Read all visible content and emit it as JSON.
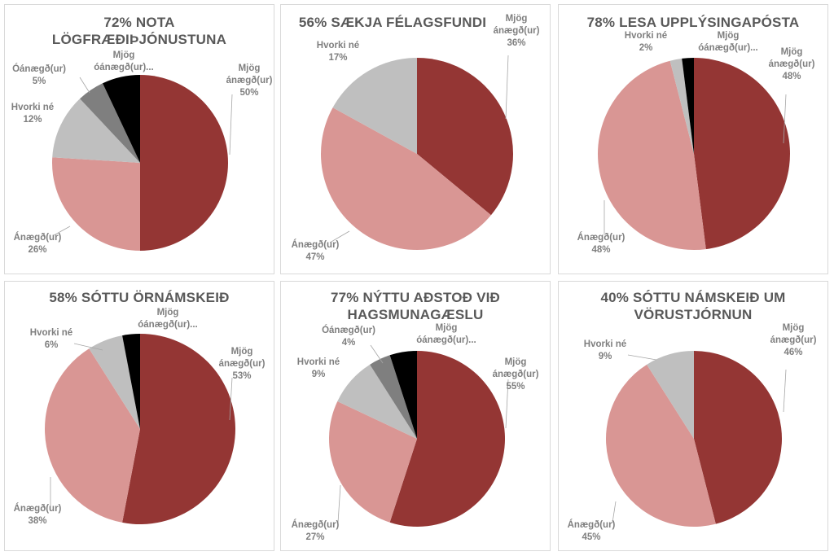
{
  "colors": {
    "mjog_anaegd": "#943634",
    "anaegd": "#d99694",
    "hvorki_ne": "#bfbfbf",
    "oanaegd": "#7f7f7f",
    "mjog_oanaegd": "#000000",
    "title": "#595959",
    "label": "#7f7f7f"
  },
  "chart_data": [
    {
      "type": "pie",
      "title": "72% NOTA LÖGFRÆÐIÞJÓNUSTUNA",
      "title_lines": [
        "72% NOTA",
        "LÖGFRÆÐIÞJÓNUSTUNA"
      ],
      "slices": [
        {
          "label": "Mjög ánægð(ur)",
          "label_lines": [
            "Mjög",
            "ánægð(ur)"
          ],
          "value": 50,
          "value_label": "50%",
          "color_key": "mjog_anaegd"
        },
        {
          "label": "Ánægð(ur)",
          "label_lines": [
            "Ánægð(ur)"
          ],
          "value": 26,
          "value_label": "26%",
          "color_key": "anaegd"
        },
        {
          "label": "Hvorki né",
          "label_lines": [
            "Hvorki né"
          ],
          "value": 12,
          "value_label": "12%",
          "color_key": "hvorki_ne"
        },
        {
          "label": "Óánægð(ur)",
          "label_lines": [
            "Óánægð(ur)"
          ],
          "value": 5,
          "value_label": "5%",
          "color_key": "oanaegd"
        },
        {
          "label": "Mjög óánægð(ur)...",
          "label_lines": [
            "Mjög",
            "óánægð(ur)..."
          ],
          "value": 7,
          "value_label": "",
          "color_key": "mjog_oanaegd"
        }
      ]
    },
    {
      "type": "pie",
      "title": "56% SÆKJA FÉLAGSFUNDI",
      "title_lines": [
        "56% SÆKJA FÉLAGSFUNDI"
      ],
      "slices": [
        {
          "label": "Mjög ánægð(ur)",
          "label_lines": [
            "Mjög",
            "ánægð(ur)"
          ],
          "value": 36,
          "value_label": "36%",
          "color_key": "mjog_anaegd"
        },
        {
          "label": "Ánægð(ur)",
          "label_lines": [
            "Ánægð(ur)"
          ],
          "value": 47,
          "value_label": "47%",
          "color_key": "anaegd"
        },
        {
          "label": "Hvorki né",
          "label_lines": [
            "Hvorki né"
          ],
          "value": 17,
          "value_label": "17%",
          "color_key": "hvorki_ne"
        }
      ]
    },
    {
      "type": "pie",
      "title": "78% LESA UPPLÝSINGAPÓSTA",
      "title_lines": [
        "78% LESA UPPLÝSINGAPÓSTA"
      ],
      "slices": [
        {
          "label": "Mjög ánægð(ur)",
          "label_lines": [
            "Mjög",
            "ánægð(ur)"
          ],
          "value": 48,
          "value_label": "48%",
          "color_key": "mjog_anaegd"
        },
        {
          "label": "Ánægð(ur)",
          "label_lines": [
            "Ánægð(ur)"
          ],
          "value": 48,
          "value_label": "48%",
          "color_key": "anaegd"
        },
        {
          "label": "Hvorki né",
          "label_lines": [
            "Hvorki né"
          ],
          "value": 2,
          "value_label": "2%",
          "color_key": "hvorki_ne"
        },
        {
          "label": "Mjög óánægð(ur)...",
          "label_lines": [
            "Mjög",
            "óánægð(ur)..."
          ],
          "value": 2,
          "value_label": "",
          "color_key": "mjog_oanaegd"
        }
      ]
    },
    {
      "type": "pie",
      "title": "58% SÓTTU ÖRNÁMSKEIÐ",
      "title_lines": [
        "58% SÓTTU ÖRNÁMSKEIÐ"
      ],
      "slices": [
        {
          "label": "Mjög ánægð(ur)",
          "label_lines": [
            "Mjög",
            "ánægð(ur)"
          ],
          "value": 53,
          "value_label": "53%",
          "color_key": "mjog_anaegd"
        },
        {
          "label": "Ánægð(ur)",
          "label_lines": [
            "Ánægð(ur)"
          ],
          "value": 38,
          "value_label": "38%",
          "color_key": "anaegd"
        },
        {
          "label": "Hvorki né",
          "label_lines": [
            "Hvorki né"
          ],
          "value": 6,
          "value_label": "6%",
          "color_key": "hvorki_ne"
        },
        {
          "label": "Mjög óánægð(ur)...",
          "label_lines": [
            "Mjög",
            "óánægð(ur)..."
          ],
          "value": 3,
          "value_label": "",
          "color_key": "mjog_oanaegd"
        }
      ]
    },
    {
      "type": "pie",
      "title": "77% NÝTTU AÐSTOÐ VIÐ HAGSMUNAGÆSLU",
      "title_lines": [
        "77% NÝTTU AÐSTOÐ VIÐ",
        "HAGSMUNAGÆSLU"
      ],
      "slices": [
        {
          "label": "Mjög ánægð(ur)",
          "label_lines": [
            "Mjög",
            "ánægð(ur)"
          ],
          "value": 55,
          "value_label": "55%",
          "color_key": "mjog_anaegd"
        },
        {
          "label": "Ánægð(ur)",
          "label_lines": [
            "Ánægð(ur)"
          ],
          "value": 27,
          "value_label": "27%",
          "color_key": "anaegd"
        },
        {
          "label": "Hvorki né",
          "label_lines": [
            "Hvorki né"
          ],
          "value": 9,
          "value_label": "9%",
          "color_key": "hvorki_ne"
        },
        {
          "label": "Óánægð(ur)",
          "label_lines": [
            "Óánægð(ur)"
          ],
          "value": 4,
          "value_label": "4%",
          "color_key": "oanaegd"
        },
        {
          "label": "Mjög óánægð(ur)...",
          "label_lines": [
            "Mjög",
            "óánægð(ur)..."
          ],
          "value": 5,
          "value_label": "",
          "color_key": "mjog_oanaegd"
        }
      ]
    },
    {
      "type": "pie",
      "title": "40% SÓTTU NÁMSKEIÐ UM VÖRUSTJÓRNUN",
      "title_lines": [
        "40% SÓTTU NÁMSKEIÐ UM",
        "VÖRUSTJÓRNUN"
      ],
      "slices": [
        {
          "label": "Mjög ánægð(ur)",
          "label_lines": [
            "Mjög",
            "ánægð(ur)"
          ],
          "value": 46,
          "value_label": "46%",
          "color_key": "mjog_anaegd"
        },
        {
          "label": "Ánægð(ur)",
          "label_lines": [
            "Ánægð(ur)"
          ],
          "value": 45,
          "value_label": "45%",
          "color_key": "anaegd"
        },
        {
          "label": "Hvorki né",
          "label_lines": [
            "Hvorki né"
          ],
          "value": 9,
          "value_label": "9%",
          "color_key": "hvorki_ne"
        }
      ]
    }
  ]
}
